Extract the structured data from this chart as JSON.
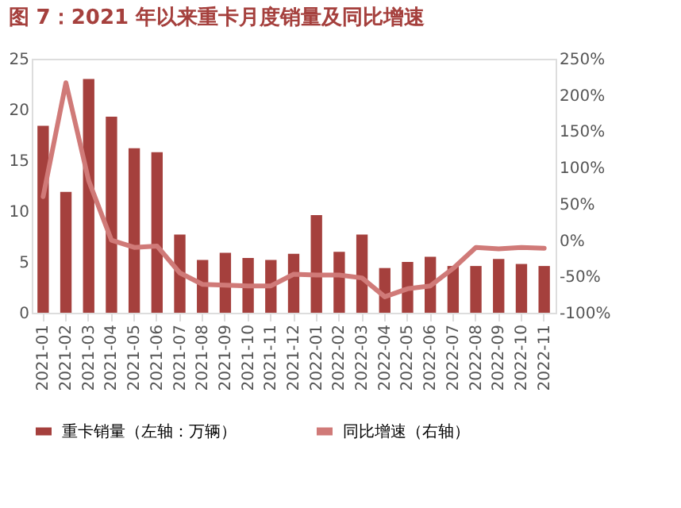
{
  "chart_data": {
    "type": "bar",
    "title": "图 7：2021 年以来重卡月度销量及同比增速",
    "categories": [
      "2021-01",
      "2021-02",
      "2021-03",
      "2021-04",
      "2021-05",
      "2021-06",
      "2021-07",
      "2021-08",
      "2021-09",
      "2021-10",
      "2021-11",
      "2021-12",
      "2022-01",
      "2022-02",
      "2022-03",
      "2022-04",
      "2022-05",
      "2022-06",
      "2022-07",
      "2022-08",
      "2022-09",
      "2022-10",
      "2022-11"
    ],
    "series": [
      {
        "name": "重卡销量（左轴：万辆）",
        "color": "#a5403d",
        "values": [
          18.4,
          11.9,
          23.0,
          19.3,
          16.2,
          15.8,
          7.7,
          5.2,
          5.9,
          5.4,
          5.2,
          5.8,
          9.6,
          6.0,
          7.7,
          4.4,
          5.0,
          5.5,
          4.6,
          4.6,
          5.3,
          4.8,
          4.6
        ]
      },
      {
        "name": "同比增速（右轴）",
        "type": "line",
        "axis": "y2",
        "color": "#d07a78",
        "values": [
          60,
          217,
          82,
          0,
          -10,
          -8,
          -45,
          -61,
          -62,
          -63,
          -63,
          -47,
          -48,
          -48,
          -52,
          -78,
          -67,
          -63,
          -39,
          -10,
          -12,
          -10,
          -11
        ]
      }
    ],
    "ylim": [
      0,
      25
    ],
    "yticks": [
      0,
      5,
      10,
      15,
      20,
      25
    ],
    "y2lim": [
      -100,
      250
    ],
    "y2ticks": [
      {
        "value": -100,
        "label": "-100%"
      },
      {
        "value": -50,
        "label": "-50%"
      },
      {
        "value": 0,
        "label": "0%"
      },
      {
        "value": 50,
        "label": "50%"
      },
      {
        "value": 100,
        "label": "100%"
      },
      {
        "value": 150,
        "label": "150%"
      },
      {
        "value": 200,
        "label": "200%"
      },
      {
        "value": 250,
        "label": "250%"
      }
    ],
    "grid": false,
    "legend": "bottom"
  }
}
